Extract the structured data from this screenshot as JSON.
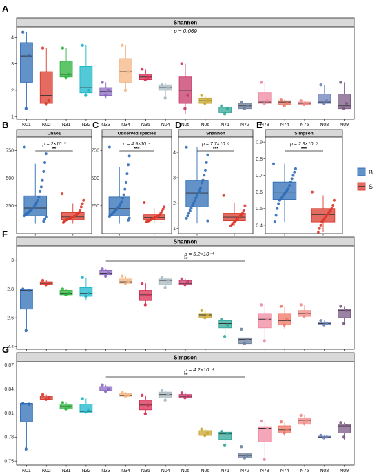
{
  "panel_labels": [
    "A",
    "B",
    "C",
    "D",
    "E",
    "F",
    "G"
  ],
  "legend": {
    "entries": [
      {
        "label": "B",
        "color": "#2f6db5"
      },
      {
        "label": "S",
        "color": "#d93a2c"
      }
    ]
  },
  "sites": [
    "N01",
    "N02",
    "N31",
    "N32",
    "N33",
    "N34",
    "N35",
    "N04",
    "N05",
    "N06",
    "N71",
    "N72",
    "N73",
    "N74",
    "N75",
    "N08",
    "N09"
  ],
  "site_colors": [
    "#2f6db5",
    "#d93a2c",
    "#2ab23a",
    "#19b7c9",
    "#8a68c0",
    "#f6b684",
    "#d82c52",
    "#a9b9c2",
    "#c7386a",
    "#c8a62e",
    "#33a89a",
    "#6b7f9e",
    "#f08aa0",
    "#f07564",
    "#f28a86",
    "#6d82bb",
    "#7b5a84"
  ],
  "chart_data": [
    {
      "id": "A",
      "type": "box",
      "title": "Shannon",
      "annotation": "p = 0.069",
      "ylim": [
        0.9,
        4.4
      ],
      "yticks": [
        1,
        2,
        3,
        4
      ],
      "categories": [
        "N01",
        "N02",
        "N31",
        "N32",
        "N33",
        "N34",
        "N35",
        "N04",
        "N05",
        "N06",
        "N71",
        "N72",
        "N73",
        "N74",
        "N75",
        "N08",
        "N09"
      ],
      "boxes": [
        {
          "q1": 2.3,
          "median": 3.3,
          "q3": 3.8,
          "lo": 1.3,
          "hi": 4.2,
          "points": [
            4.2,
            3.3,
            1.3
          ]
        },
        {
          "q1": 1.5,
          "median": 1.8,
          "q3": 2.7,
          "lo": 1.4,
          "hi": 3.6,
          "points": [
            3.6,
            1.6,
            1.5
          ]
        },
        {
          "q1": 2.5,
          "median": 2.6,
          "q3": 3.1,
          "lo": 2.4,
          "hi": 3.6,
          "points": [
            3.6,
            2.6,
            2.5
          ]
        },
        {
          "q1": 1.9,
          "median": 2.1,
          "q3": 2.9,
          "lo": 1.8,
          "hi": 3.7,
          "points": [
            3.7,
            2.0,
            1.8
          ]
        },
        {
          "q1": 1.8,
          "median": 1.95,
          "q3": 2.1,
          "lo": 1.7,
          "hi": 2.3,
          "points": [
            2.3,
            2.0,
            1.8
          ]
        },
        {
          "q1": 2.3,
          "median": 2.7,
          "q3": 3.2,
          "lo": 2.0,
          "hi": 3.7,
          "points": [
            3.7,
            2.7,
            2.0
          ]
        },
        {
          "q1": 2.4,
          "median": 2.5,
          "q3": 2.6,
          "lo": 2.4,
          "hi": 2.8,
          "points": [
            2.8,
            2.5,
            2.4
          ]
        },
        {
          "q1": 2.0,
          "median": 2.1,
          "q3": 2.2,
          "lo": 1.7,
          "hi": 2.25,
          "points": [
            2.2,
            2.1,
            1.7
          ]
        },
        {
          "q1": 1.5,
          "median": 2.0,
          "q3": 2.5,
          "lo": 1.1,
          "hi": 3.0,
          "points": [
            3.0,
            1.8,
            1.3
          ]
        },
        {
          "q1": 1.5,
          "median": 1.6,
          "q3": 1.7,
          "lo": 1.45,
          "hi": 1.8,
          "points": [
            1.8,
            1.6,
            1.5
          ]
        },
        {
          "q1": 1.15,
          "median": 1.25,
          "q3": 1.35,
          "lo": 1.0,
          "hi": 1.4,
          "points": [
            1.4,
            1.3,
            1.1
          ]
        },
        {
          "q1": 1.3,
          "median": 1.4,
          "q3": 1.5,
          "lo": 1.3,
          "hi": 1.55,
          "points": [
            1.55,
            1.4,
            1.3
          ]
        },
        {
          "q1": 1.5,
          "median": 1.55,
          "q3": 1.9,
          "lo": 1.45,
          "hi": 2.3,
          "points": [
            2.3,
            1.6,
            1.5
          ]
        },
        {
          "q1": 1.45,
          "median": 1.55,
          "q3": 1.6,
          "lo": 1.4,
          "hi": 1.65,
          "points": [
            1.65,
            1.5,
            1.4
          ]
        },
        {
          "q1": 1.45,
          "median": 1.5,
          "q3": 1.55,
          "lo": 1.42,
          "hi": 1.6,
          "points": [
            1.6,
            1.5,
            1.45
          ]
        },
        {
          "q1": 1.5,
          "median": 1.55,
          "q3": 1.85,
          "lo": 1.45,
          "hi": 2.2,
          "points": [
            2.2,
            1.6,
            1.5
          ]
        },
        {
          "q1": 1.3,
          "median": 1.4,
          "q3": 1.85,
          "lo": 1.3,
          "hi": 2.3,
          "points": [
            2.3,
            1.5,
            1.3
          ]
        }
      ]
    },
    {
      "id": "B",
      "type": "box",
      "title": "Chao1",
      "annotation": "p = 2×10⁻³",
      "stars": "**",
      "ylim": [
        0,
        870
      ],
      "yticks": [
        250,
        500,
        750
      ],
      "categories": [
        "B",
        "S"
      ],
      "boxes": [
        {
          "q1": 160,
          "median": 230,
          "q3": 340,
          "lo": 90,
          "hi": 630,
          "points": [
            780,
            720,
            640,
            560,
            480,
            420,
            380,
            330,
            300,
            280,
            260,
            240,
            230,
            220,
            210,
            200,
            190,
            180,
            170,
            160,
            150,
            130,
            110
          ]
        },
        {
          "q1": 125,
          "median": 150,
          "q3": 190,
          "lo": 90,
          "hi": 270,
          "points": [
            360,
            300,
            270,
            240,
            210,
            190,
            180,
            170,
            160,
            155,
            150,
            145,
            140,
            135,
            130,
            125,
            120,
            110,
            100
          ]
        }
      ]
    },
    {
      "id": "C",
      "type": "box",
      "title": "Observed species",
      "annotation": "p = 4.9×10⁻⁴",
      "stars": "***",
      "ylim": [
        0,
        870
      ],
      "yticks": [
        250,
        500,
        750
      ],
      "categories": [
        "B",
        "S"
      ],
      "boxes": [
        {
          "q1": 160,
          "median": 225,
          "q3": 330,
          "lo": 90,
          "hi": 600,
          "points": [
            780,
            700,
            620,
            540,
            460,
            400,
            350,
            320,
            290,
            270,
            250,
            235,
            225,
            215,
            205,
            195,
            185,
            175,
            165,
            155,
            140,
            120
          ]
        },
        {
          "q1": 125,
          "median": 145,
          "q3": 170,
          "lo": 100,
          "hi": 230,
          "points": [
            280,
            240,
            220,
            200,
            185,
            170,
            160,
            155,
            150,
            145,
            140,
            135,
            130,
            125,
            120,
            115,
            110,
            105
          ]
        }
      ]
    },
    {
      "id": "D",
      "type": "box",
      "title": "Shannon",
      "annotation": "p = 7.7×10⁻⁶",
      "stars": "***",
      "ylim": [
        0.8,
        4.6
      ],
      "yticks": [
        1,
        2,
        3,
        4
      ],
      "categories": [
        "B",
        "S"
      ],
      "boxes": [
        {
          "q1": 1.85,
          "median": 2.4,
          "q3": 2.9,
          "lo": 1.2,
          "hi": 4.2,
          "points": [
            4.2,
            3.9,
            3.6,
            3.3,
            3.1,
            2.9,
            2.8,
            2.6,
            2.5,
            2.4,
            2.3,
            2.2,
            2.1,
            2.0,
            1.9,
            1.8,
            1.7,
            1.6,
            1.5,
            1.4,
            1.3
          ]
        },
        {
          "q1": 1.3,
          "median": 1.45,
          "q3": 1.6,
          "lo": 1.1,
          "hi": 2.0,
          "points": [
            2.3,
            1.9,
            1.7,
            1.6,
            1.55,
            1.5,
            1.45,
            1.4,
            1.35,
            1.3,
            1.25,
            1.2,
            1.15,
            1.1
          ]
        }
      ]
    },
    {
      "id": "E",
      "type": "box",
      "title": "Simpson",
      "annotation": "p = 2.3×10⁻⁶",
      "stars": "***",
      "ylim": [
        0.35,
        0.93
      ],
      "yticks": [
        0.4,
        0.5,
        0.6,
        0.7,
        0.8,
        0.9
      ],
      "categories": [
        "B",
        "S"
      ],
      "boxes": [
        {
          "q1": 0.555,
          "median": 0.6,
          "q3": 0.66,
          "lo": 0.42,
          "hi": 0.77,
          "points": [
            0.77,
            0.74,
            0.72,
            0.7,
            0.68,
            0.66,
            0.64,
            0.62,
            0.61,
            0.6,
            0.59,
            0.58,
            0.57,
            0.56,
            0.55,
            0.53,
            0.5,
            0.46,
            0.42
          ]
        },
        {
          "q1": 0.42,
          "median": 0.465,
          "q3": 0.5,
          "lo": 0.36,
          "hi": 0.58,
          "points": [
            0.6,
            0.55,
            0.52,
            0.5,
            0.49,
            0.48,
            0.47,
            0.46,
            0.45,
            0.44,
            0.43,
            0.42,
            0.4,
            0.38,
            0.36
          ]
        }
      ]
    },
    {
      "id": "F",
      "type": "box",
      "title": "Shannon",
      "annotation": "p = 5.2×10⁻⁴",
      "stars": "**",
      "ylim": [
        2.38,
        3.1
      ],
      "yticks": [
        2.4,
        2.6,
        2.8,
        3.0
      ],
      "categories": [
        "N01",
        "N02",
        "N31",
        "N32",
        "N33",
        "N34",
        "N35",
        "N04",
        "N05",
        "N06",
        "N71",
        "N72",
        "N73",
        "N74",
        "N75",
        "N08",
        "N09"
      ],
      "boxes": [
        {
          "q1": 2.66,
          "median": 2.79,
          "q3": 2.8,
          "lo": 2.51,
          "hi": 2.8,
          "points": [
            2.8,
            2.79,
            2.51
          ]
        },
        {
          "q1": 2.83,
          "median": 2.84,
          "q3": 2.85,
          "lo": 2.82,
          "hi": 2.86,
          "points": [
            2.86,
            2.84,
            2.83
          ]
        },
        {
          "q1": 2.76,
          "median": 2.77,
          "q3": 2.79,
          "lo": 2.75,
          "hi": 2.8,
          "points": [
            2.8,
            2.77,
            2.76
          ]
        },
        {
          "q1": 2.75,
          "median": 2.77,
          "q3": 2.81,
          "lo": 2.72,
          "hi": 2.88,
          "points": [
            2.88,
            2.77,
            2.75
          ]
        },
        {
          "q1": 2.9,
          "median": 2.91,
          "q3": 2.93,
          "lo": 2.88,
          "hi": 2.94,
          "points": [
            2.94,
            2.91,
            2.89
          ]
        },
        {
          "q1": 2.84,
          "median": 2.85,
          "q3": 2.87,
          "lo": 2.83,
          "hi": 2.89,
          "points": [
            2.89,
            2.85,
            2.84
          ]
        },
        {
          "q1": 2.72,
          "median": 2.76,
          "q3": 2.79,
          "lo": 2.68,
          "hi": 2.84,
          "points": [
            2.84,
            2.76,
            2.69
          ]
        },
        {
          "q1": 2.83,
          "median": 2.86,
          "q3": 2.87,
          "lo": 2.81,
          "hi": 2.88,
          "points": [
            2.88,
            2.86,
            2.81
          ]
        },
        {
          "q1": 2.83,
          "median": 2.84,
          "q3": 2.86,
          "lo": 2.82,
          "hi": 2.87,
          "points": [
            2.87,
            2.85,
            2.83
          ]
        },
        {
          "q1": 2.6,
          "median": 2.62,
          "q3": 2.63,
          "lo": 2.59,
          "hi": 2.65,
          "points": [
            2.65,
            2.62,
            2.6
          ]
        },
        {
          "q1": 2.53,
          "median": 2.56,
          "q3": 2.58,
          "lo": 2.47,
          "hi": 2.59,
          "points": [
            2.59,
            2.55,
            2.47
          ]
        },
        {
          "q1": 2.42,
          "median": 2.45,
          "q3": 2.46,
          "lo": 2.41,
          "hi": 2.52,
          "points": [
            2.52,
            2.45,
            2.42
          ]
        },
        {
          "q1": 2.53,
          "median": 2.59,
          "q3": 2.63,
          "lo": 2.42,
          "hi": 2.69,
          "points": [
            2.69,
            2.59,
            2.44
          ]
        },
        {
          "q1": 2.55,
          "median": 2.58,
          "q3": 2.63,
          "lo": 2.52,
          "hi": 2.68,
          "points": [
            2.68,
            2.59,
            2.55
          ]
        },
        {
          "q1": 2.61,
          "median": 2.63,
          "q3": 2.65,
          "lo": 2.6,
          "hi": 2.69,
          "points": [
            2.69,
            2.63,
            2.61
          ]
        },
        {
          "q1": 2.55,
          "median": 2.56,
          "q3": 2.57,
          "lo": 2.54,
          "hi": 2.58,
          "points": [
            2.58,
            2.56,
            2.55
          ]
        },
        {
          "q1": 2.6,
          "median": 2.65,
          "q3": 2.66,
          "lo": 2.55,
          "hi": 2.68,
          "points": [
            2.68,
            2.65,
            2.56
          ]
        }
      ]
    },
    {
      "id": "G",
      "type": "box",
      "title": "Simpson",
      "annotation": "p = 4.2×10⁻⁴",
      "stars": "**",
      "ylim": [
        0.745,
        0.874
      ],
      "yticks": [
        0.75,
        0.78,
        0.81,
        0.84,
        0.87
      ],
      "categories": [
        "N01",
        "N02",
        "N31",
        "N32",
        "N33",
        "N34",
        "N35",
        "N04",
        "N05",
        "N06",
        "N71",
        "N72",
        "N73",
        "N74",
        "N75",
        "N08",
        "N09"
      ],
      "boxes": [
        {
          "q1": 0.799,
          "median": 0.821,
          "q3": 0.822,
          "lo": 0.765,
          "hi": 0.822,
          "points": [
            0.822,
            0.821,
            0.765
          ]
        },
        {
          "q1": 0.827,
          "median": 0.829,
          "q3": 0.831,
          "lo": 0.826,
          "hi": 0.833,
          "points": [
            0.833,
            0.829,
            0.827
          ]
        },
        {
          "q1": 0.815,
          "median": 0.818,
          "q3": 0.82,
          "lo": 0.814,
          "hi": 0.823,
          "points": [
            0.823,
            0.818,
            0.815
          ]
        },
        {
          "q1": 0.811,
          "median": 0.812,
          "q3": 0.821,
          "lo": 0.81,
          "hi": 0.828,
          "points": [
            0.828,
            0.814,
            0.811
          ]
        },
        {
          "q1": 0.838,
          "median": 0.84,
          "q3": 0.843,
          "lo": 0.835,
          "hi": 0.845,
          "points": [
            0.845,
            0.84,
            0.837
          ]
        },
        {
          "q1": 0.831,
          "median": 0.832,
          "q3": 0.834,
          "lo": 0.83,
          "hi": 0.836,
          "points": [
            0.836,
            0.832,
            0.831
          ]
        },
        {
          "q1": 0.814,
          "median": 0.82,
          "q3": 0.826,
          "lo": 0.808,
          "hi": 0.832,
          "points": [
            0.832,
            0.82,
            0.809
          ]
        },
        {
          "q1": 0.829,
          "median": 0.833,
          "q3": 0.836,
          "lo": 0.825,
          "hi": 0.838,
          "points": [
            0.838,
            0.833,
            0.826
          ]
        },
        {
          "q1": 0.829,
          "median": 0.831,
          "q3": 0.833,
          "lo": 0.828,
          "hi": 0.835,
          "points": [
            0.835,
            0.831,
            0.829
          ]
        },
        {
          "q1": 0.782,
          "median": 0.785,
          "q3": 0.788,
          "lo": 0.78,
          "hi": 0.79,
          "points": [
            0.79,
            0.785,
            0.782
          ]
        },
        {
          "q1": 0.777,
          "median": 0.784,
          "q3": 0.786,
          "lo": 0.769,
          "hi": 0.787,
          "points": [
            0.787,
            0.784,
            0.77
          ]
        },
        {
          "q1": 0.754,
          "median": 0.757,
          "q3": 0.76,
          "lo": 0.752,
          "hi": 0.768,
          "points": [
            0.768,
            0.757,
            0.754
          ]
        },
        {
          "q1": 0.774,
          "median": 0.791,
          "q3": 0.793,
          "lo": 0.75,
          "hi": 0.8,
          "points": [
            0.8,
            0.791,
            0.752
          ]
        },
        {
          "q1": 0.785,
          "median": 0.789,
          "q3": 0.794,
          "lo": 0.781,
          "hi": 0.799,
          "points": [
            0.799,
            0.789,
            0.785
          ]
        },
        {
          "q1": 0.796,
          "median": 0.801,
          "q3": 0.804,
          "lo": 0.794,
          "hi": 0.807,
          "points": [
            0.807,
            0.801,
            0.797
          ]
        },
        {
          "q1": 0.779,
          "median": 0.78,
          "q3": 0.781,
          "lo": 0.778,
          "hi": 0.782,
          "points": [
            0.782,
            0.78,
            0.779
          ]
        },
        {
          "q1": 0.785,
          "median": 0.794,
          "q3": 0.796,
          "lo": 0.777,
          "hi": 0.798,
          "points": [
            0.798,
            0.794,
            0.78
          ]
        }
      ]
    }
  ]
}
